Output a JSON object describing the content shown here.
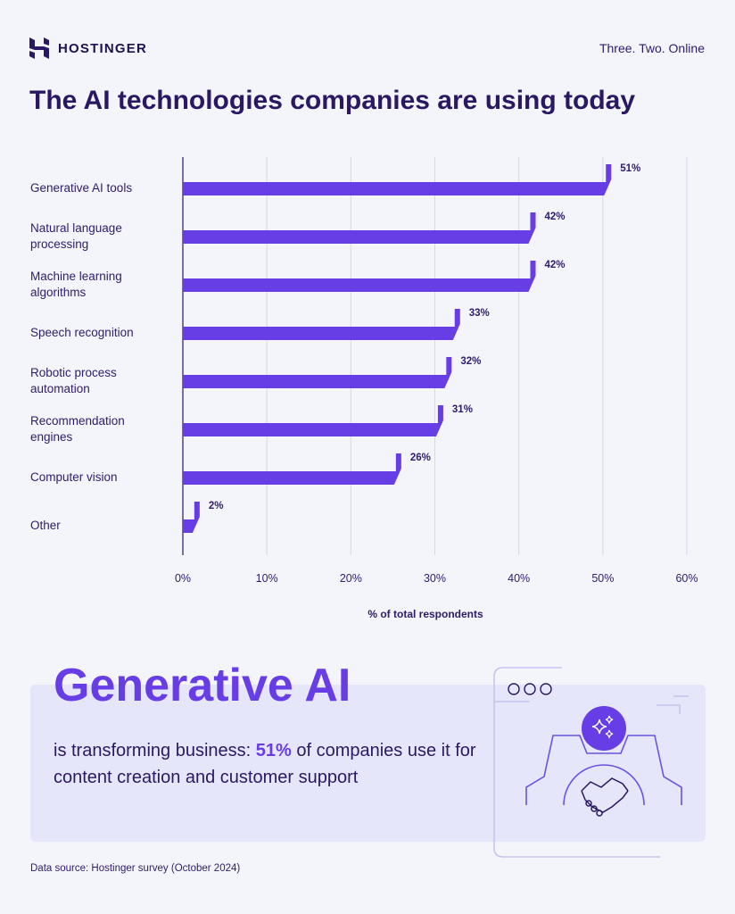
{
  "header": {
    "brand": "HOSTINGER",
    "tagline": "Three. Two. Online",
    "title": "The AI technologies companies are using today"
  },
  "chart_data": {
    "type": "bar",
    "orientation": "horizontal",
    "title": "The AI technologies companies are using today",
    "categories": [
      "Generative AI tools",
      "Natural language processing",
      "Machine learning algorithms",
      "Speech recognition",
      "Robotic process automation",
      "Recommendation engines",
      "Computer vision",
      "Other"
    ],
    "category_lines": [
      [
        "Generative AI tools"
      ],
      [
        "Natural language",
        "processing"
      ],
      [
        "Machine learning",
        "algorithms"
      ],
      [
        "Speech recognition"
      ],
      [
        "Robotic process",
        "automation"
      ],
      [
        "Recommendation",
        "engines"
      ],
      [
        "Computer vision"
      ],
      [
        "Other"
      ]
    ],
    "values": [
      51,
      42,
      42,
      33,
      32,
      31,
      26,
      2
    ],
    "data_labels": [
      "51%",
      "42%",
      "42%",
      "33%",
      "32%",
      "31%",
      "26%",
      "2%"
    ],
    "xlabel": "% of total respondents",
    "xlim": [
      0,
      60
    ],
    "ticks": [
      0,
      10,
      20,
      30,
      40,
      50,
      60
    ],
    "tick_labels": [
      "0%",
      "10%",
      "20%",
      "30%",
      "40%",
      "50%",
      "60%"
    ],
    "grid": true,
    "bar_color": "#673de6"
  },
  "highlight": {
    "title": "Generative AI",
    "text_before": "is transforming business: ",
    "accent": "51%",
    "text_after": " of companies use it for content creation and customer support"
  },
  "source": "Data source: Hostinger survey (October 2024)",
  "colors": {
    "accent": "#673de6",
    "dark": "#2a1863",
    "background": "#f4f4fb",
    "panel": "#e6e6fa"
  },
  "icons": [
    "hostinger-logo-icon",
    "browser-gear-icon",
    "sparkles-icon",
    "handshake-icon"
  ]
}
